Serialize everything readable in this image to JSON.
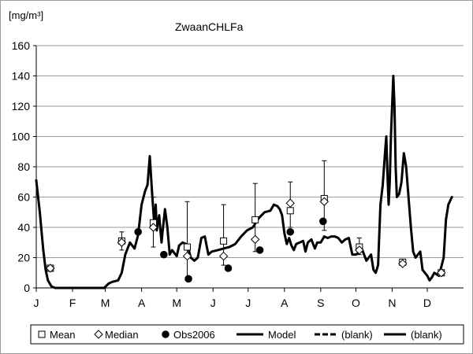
{
  "chart_data": {
    "type": "line",
    "title": "ZwaanCHLFa",
    "ylabel": "[mg/m³]",
    "xlabel": "",
    "ylim": [
      0,
      160
    ],
    "y_ticks": [
      0,
      20,
      40,
      60,
      80,
      100,
      120,
      140,
      160
    ],
    "xlim": [
      0,
      365
    ],
    "x_ticks": [
      {
        "label": "J",
        "day": 0
      },
      {
        "label": "F",
        "day": 31
      },
      {
        "label": "M",
        "day": 59
      },
      {
        "label": "A",
        "day": 90
      },
      {
        "label": "M",
        "day": 120
      },
      {
        "label": "J",
        "day": 151
      },
      {
        "label": "J",
        "day": 181
      },
      {
        "label": "A",
        "day": 212
      },
      {
        "label": "S",
        "day": 243
      },
      {
        "label": "O",
        "day": 273
      },
      {
        "label": "N",
        "day": 304
      },
      {
        "label": "D",
        "day": 334
      }
    ],
    "grid": "horizontal",
    "legend": {
      "placement": "bottom",
      "entries": [
        {
          "label": "Mean",
          "marker": "open-square"
        },
        {
          "label": "Median",
          "marker": "open-diamond"
        },
        {
          "label": "Obs2006",
          "marker": "filled-circle"
        },
        {
          "label": "Model",
          "marker": "solid-line"
        },
        {
          "label": "(blank)",
          "marker": "dashed-line"
        },
        {
          "label": "(blank)",
          "marker": "thick-line"
        }
      ]
    },
    "series": [
      {
        "name": "Mean",
        "marker": "open-square",
        "points": [
          {
            "x": 12,
            "y": 13
          },
          {
            "x": 73,
            "y": 31,
            "err_low": 25,
            "err_high": 37
          },
          {
            "x": 100,
            "y": 43,
            "err_low": 27,
            "err_high": 60
          },
          {
            "x": 129,
            "y": 27,
            "err_low": 5,
            "err_high": 57
          },
          {
            "x": 160,
            "y": 31,
            "err_low": 15,
            "err_high": 55
          },
          {
            "x": 187,
            "y": 45,
            "err_low": 24,
            "err_high": 69
          },
          {
            "x": 217,
            "y": 51,
            "err_low": 40,
            "err_high": 70
          },
          {
            "x": 246,
            "y": 59,
            "err_low": 38,
            "err_high": 84
          },
          {
            "x": 276,
            "y": 27,
            "err_low": 22,
            "err_high": 33
          },
          {
            "x": 313,
            "y": 17
          },
          {
            "x": 346,
            "y": 10
          }
        ]
      },
      {
        "name": "Median",
        "marker": "open-diamond",
        "points": [
          {
            "x": 12,
            "y": 13
          },
          {
            "x": 73,
            "y": 30
          },
          {
            "x": 100,
            "y": 40
          },
          {
            "x": 129,
            "y": 21
          },
          {
            "x": 160,
            "y": 21
          },
          {
            "x": 187,
            "y": 32
          },
          {
            "x": 217,
            "y": 56
          },
          {
            "x": 246,
            "y": 57
          },
          {
            "x": 276,
            "y": 25
          },
          {
            "x": 313,
            "y": 16
          },
          {
            "x": 346,
            "y": 10
          }
        ]
      },
      {
        "name": "Obs2006",
        "marker": "filled-circle",
        "points": [
          {
            "x": 87,
            "y": 37
          },
          {
            "x": 109,
            "y": 22
          },
          {
            "x": 130,
            "y": 6
          },
          {
            "x": 164,
            "y": 13
          },
          {
            "x": 191,
            "y": 25
          },
          {
            "x": 217,
            "y": 37
          },
          {
            "x": 245,
            "y": 44
          }
        ]
      },
      {
        "name": "Model",
        "line": "solid",
        "x": [
          0,
          3,
          6,
          8,
          10,
          13,
          16,
          20,
          30,
          40,
          50,
          58,
          62,
          65,
          70,
          73,
          76,
          80,
          84,
          87,
          90,
          93,
          95,
          97,
          99,
          101,
          102,
          103,
          105,
          107,
          108,
          110,
          112,
          114,
          116,
          118,
          120,
          122,
          125,
          128,
          130,
          132,
          135,
          138,
          141,
          144,
          147,
          150,
          155,
          160,
          165,
          170,
          175,
          180,
          185,
          190,
          195,
          200,
          203,
          206,
          208,
          210,
          212,
          214,
          216,
          218,
          220,
          222,
          225,
          228,
          230,
          232,
          235,
          238,
          240,
          243,
          246,
          249,
          252,
          255,
          258,
          261,
          264,
          267,
          270,
          273,
          275,
          278,
          280,
          282,
          284,
          286,
          288,
          290,
          292,
          294,
          296,
          298,
          299,
          300,
          301,
          302,
          303,
          304,
          305,
          306,
          307,
          308,
          310,
          312,
          314,
          316,
          318,
          320,
          322,
          324,
          326,
          328,
          330,
          332,
          334,
          336,
          338,
          340,
          342,
          344,
          346,
          348,
          350,
          352,
          355
        ],
        "y": [
          71,
          50,
          25,
          12,
          5,
          1,
          0,
          0,
          0,
          0,
          0,
          0,
          3,
          4,
          5,
          10,
          22,
          30,
          26,
          35,
          55,
          64,
          68,
          87,
          62,
          40,
          55,
          38,
          48,
          30,
          38,
          52,
          40,
          22,
          25,
          23,
          21,
          28,
          30,
          29,
          26,
          20,
          18,
          20,
          33,
          34,
          22,
          24,
          25,
          26,
          27,
          29,
          34,
          38,
          40,
          46,
          50,
          51,
          55,
          54,
          52,
          48,
          36,
          29,
          33,
          28,
          25,
          29,
          30,
          31,
          24,
          30,
          32,
          26,
          30,
          30,
          34,
          33,
          34,
          34,
          33,
          30,
          32,
          33,
          22,
          22,
          23,
          26,
          22,
          18,
          20,
          22,
          12,
          10,
          15,
          55,
          68,
          90,
          100,
          75,
          55,
          70,
          100,
          120,
          140,
          120,
          80,
          60,
          62,
          70,
          89,
          80,
          60,
          40,
          24,
          20,
          22,
          24,
          12,
          10,
          8,
          5,
          7,
          10,
          9,
          8,
          14,
          20,
          45,
          55,
          60
        ]
      },
      {
        "name": "(blank)",
        "line": "dashed",
        "x": [],
        "y": []
      },
      {
        "name": "(blank)",
        "line": "thick",
        "x": [],
        "y": []
      }
    ]
  }
}
